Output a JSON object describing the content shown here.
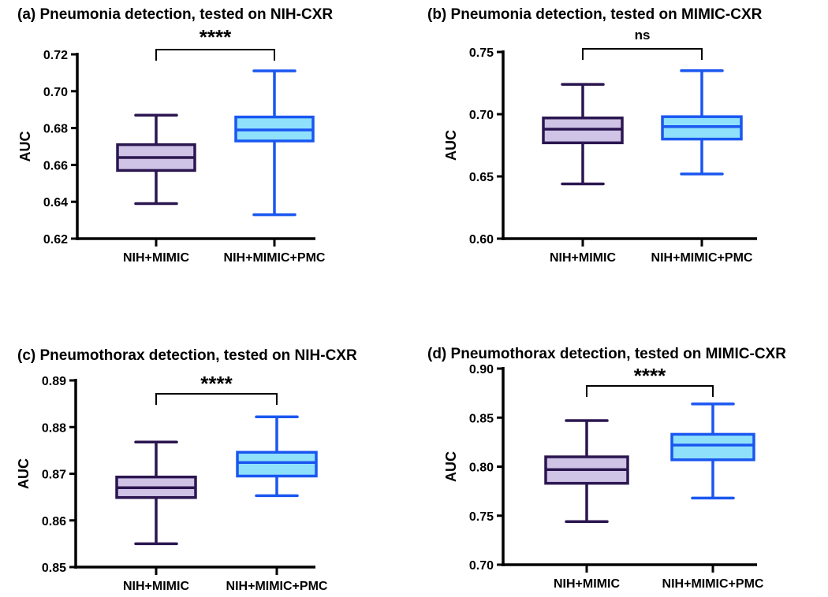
{
  "colors": {
    "series1_stroke": "#2b1650",
    "series1_fill": "#cfc3e6",
    "series2_stroke": "#1a56f0",
    "series2_fill": "#8fe1fb",
    "axis": "#000000"
  },
  "chart_data": [
    {
      "type": "box",
      "title": "(a) Pneumonia detection, tested on NIH-CXR",
      "ylabel": "AUC",
      "ylim": [
        0.62,
        0.72
      ],
      "yticks": [
        "0.62",
        "0.64",
        "0.66",
        "0.68",
        "0.70",
        "0.72"
      ],
      "categories": [
        "NIH+MIMIC",
        "NIH+MIMIC+PMC"
      ],
      "boxes": [
        {
          "min": 0.639,
          "q1": 0.657,
          "median": 0.664,
          "q3": 0.671,
          "max": 0.687
        },
        {
          "min": 0.633,
          "q1": 0.673,
          "median": 0.679,
          "q3": 0.686,
          "max": 0.711
        }
      ],
      "significance": "****",
      "grid": false
    },
    {
      "type": "box",
      "title": "(b) Pneumonia detection, tested on MIMIC-CXR",
      "ylabel": "AUC",
      "ylim": [
        0.6,
        0.75
      ],
      "yticks": [
        "0.60",
        "0.65",
        "0.70",
        "0.75"
      ],
      "categories": [
        "NIH+MIMIC",
        "NIH+MIMIC+PMC"
      ],
      "boxes": [
        {
          "min": 0.644,
          "q1": 0.677,
          "median": 0.688,
          "q3": 0.697,
          "max": 0.724
        },
        {
          "min": 0.652,
          "q1": 0.68,
          "median": 0.69,
          "q3": 0.698,
          "max": 0.735
        }
      ],
      "significance": "ns",
      "grid": false
    },
    {
      "type": "box",
      "title": "(c) Pneumothorax detection, tested on NIH-CXR",
      "ylabel": "AUC",
      "ylim": [
        0.85,
        0.89
      ],
      "yticks": [
        "0.85",
        "0.86",
        "0.87",
        "0.88",
        "0.89"
      ],
      "categories": [
        "NIH+MIMIC",
        "NIH+MIMIC+PMC"
      ],
      "boxes": [
        {
          "min": 0.855,
          "q1": 0.8649,
          "median": 0.867,
          "q3": 0.8693,
          "max": 0.8768
        },
        {
          "min": 0.8653,
          "q1": 0.8695,
          "median": 0.8724,
          "q3": 0.8746,
          "max": 0.8822
        }
      ],
      "significance": "****",
      "grid": false
    },
    {
      "type": "box",
      "title": "(d) Pneumothorax detection, tested on MIMIC-CXR",
      "ylabel": "AUC",
      "ylim": [
        0.7,
        0.9
      ],
      "yticks": [
        "0.70",
        "0.75",
        "0.80",
        "0.85",
        "0.90"
      ],
      "categories": [
        "NIH+MIMIC",
        "NIH+MIMIC+PMC"
      ],
      "boxes": [
        {
          "min": 0.744,
          "q1": 0.783,
          "median": 0.797,
          "q3": 0.81,
          "max": 0.847
        },
        {
          "min": 0.768,
          "q1": 0.807,
          "median": 0.822,
          "q3": 0.833,
          "max": 0.864
        }
      ],
      "significance": "****",
      "grid": false
    }
  ]
}
